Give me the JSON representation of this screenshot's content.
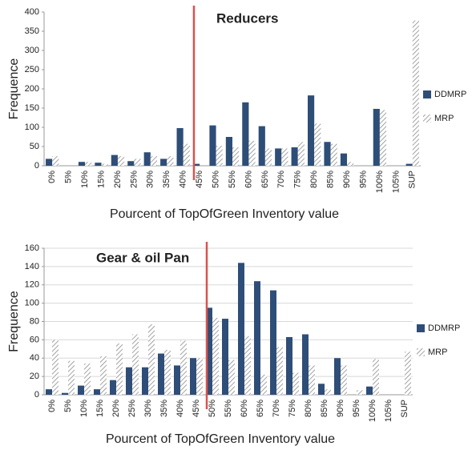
{
  "chart_data": [
    {
      "type": "bar",
      "title": "Reducers",
      "x_label": "Pourcent of TopOfGreen Inventory value",
      "y_label": "Frequence",
      "categories": [
        "0%",
        "5%",
        "10%",
        "15%",
        "20%",
        "25%",
        "30%",
        "35%",
        "40%",
        "45%",
        "50%",
        "55%",
        "60%",
        "65%",
        "70%",
        "75%",
        "80%",
        "85%",
        "90%",
        "95%",
        "100%",
        "105%",
        "SUP"
      ],
      "series": [
        {
          "name": "DDMRP",
          "color": "#2e4e78",
          "values": [
            18,
            0,
            10,
            8,
            28,
            12,
            35,
            18,
            98,
            5,
            105,
            75,
            165,
            103,
            45,
            48,
            183,
            62,
            32,
            0,
            148,
            0,
            5
          ]
        },
        {
          "name": "MRP",
          "color": "#8c8c8c",
          "pattern": "hatch",
          "values": [
            25,
            0,
            10,
            5,
            25,
            18,
            25,
            25,
            57,
            0,
            52,
            48,
            65,
            45,
            45,
            62,
            110,
            57,
            10,
            0,
            145,
            0,
            378
          ]
        }
      ],
      "ylim": [
        0,
        400
      ],
      "yticks": [
        0,
        50,
        100,
        150,
        200,
        250,
        300,
        350,
        400
      ],
      "grid": false,
      "legend": "right",
      "vline_at": "45%",
      "vline_color": "#d9534f"
    },
    {
      "type": "bar",
      "title": "Gear & oil Pan",
      "x_label": "Pourcent of TopOfGreen Inventory value",
      "y_label": "Frequence",
      "categories": [
        "0%",
        "5%",
        "10%",
        "15%",
        "20%",
        "25%",
        "30%",
        "35%",
        "40%",
        "45%",
        "50%",
        "55%",
        "60%",
        "65%",
        "70%",
        "75%",
        "80%",
        "85%",
        "90%",
        "95%",
        "100%",
        "105%",
        "SUP"
      ],
      "series": [
        {
          "name": "DDMRP",
          "color": "#2e4e78",
          "values": [
            6,
            2,
            10,
            6,
            16,
            30,
            30,
            45,
            32,
            40,
            95,
            83,
            144,
            124,
            114,
            63,
            66,
            12,
            40,
            0,
            9,
            0,
            0
          ]
        },
        {
          "name": "MRP",
          "color": "#8c8c8c",
          "pattern": "hatch",
          "values": [
            60,
            37,
            34,
            42,
            56,
            66,
            77,
            49,
            59,
            40,
            84,
            38,
            64,
            22,
            52,
            24,
            32,
            6,
            32,
            5,
            39,
            0,
            47
          ]
        }
      ],
      "ylim": [
        0,
        160
      ],
      "yticks": [
        0,
        20,
        40,
        60,
        80,
        100,
        120,
        140,
        160
      ],
      "grid": true,
      "legend": "right",
      "vline_at": "50%",
      "vline_color": "#d9534f"
    }
  ]
}
